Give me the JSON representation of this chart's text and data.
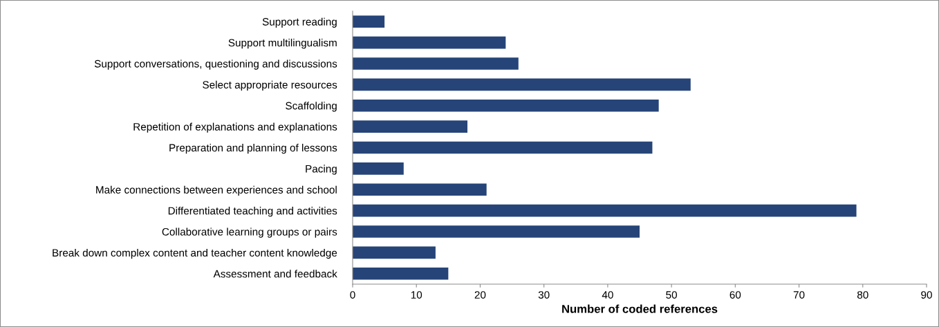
{
  "chart_data": {
    "type": "bar",
    "orientation": "horizontal",
    "xlabel": "Number of coded references",
    "categories": [
      "Support reading",
      "Support multilingualism",
      "Support conversations, questioning and discussions",
      "Select appropriate resources",
      "Scaffolding",
      "Repetition of explanations and explanations",
      "Preparation and planning of lessons",
      "Pacing",
      "Make connections between experiences and school",
      "Differentiated teaching and activities",
      "Collaborative learning groups or pairs",
      "Break down complex content and teacher content knowledge",
      "Assessment and feedback"
    ],
    "values": [
      5,
      24,
      26,
      53,
      48,
      18,
      47,
      8,
      21,
      79,
      45,
      13,
      15
    ],
    "color": "#264478",
    "xlim": [
      0,
      90
    ],
    "xticks": [
      0,
      10,
      20,
      30,
      40,
      50,
      60,
      70,
      80,
      90
    ],
    "grid": false,
    "legend": false
  }
}
